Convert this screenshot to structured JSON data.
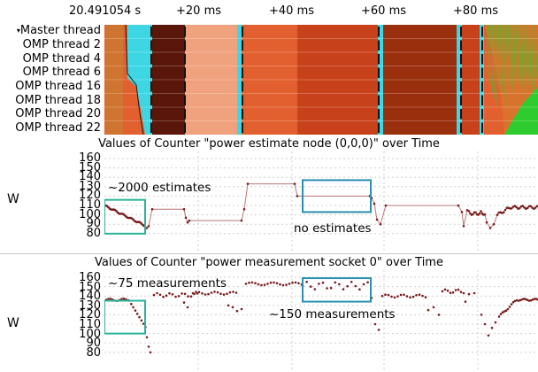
{
  "time_axis": {
    "start_label": "20.491054 s",
    "ticks": [
      "+20 ms",
      "+40 ms",
      "+60 ms",
      "+80 ms"
    ]
  },
  "threads": {
    "master": "Master thread",
    "items": [
      "OMP thread 2",
      "OMP thread 4",
      "OMP thread 6",
      "OMP thread 16",
      "OMP thread 18",
      "OMP thread 20",
      "OMP thread 22"
    ]
  },
  "colors": {
    "cyan": "#3fd6e4",
    "dark_brown": "#5a1608",
    "salmon": "#f0a27e",
    "orange": "#e2602f",
    "deep_orange": "#c7421a",
    "brown": "#9a2f0e",
    "green": "#2ecc2e",
    "teal_box": "#2ab39a",
    "blue_box": "#2a8fb0",
    "marker": "#7a1a1a",
    "line": "#b77777"
  },
  "panel1": {
    "title": "Values of Counter \"power estimate node (0,0,0)\" over Time",
    "ylabel": "W",
    "yticks": [
      "160",
      "150",
      "140",
      "130",
      "120",
      "110",
      "100",
      "90",
      "80"
    ],
    "annotation_left": "~2000 estimates",
    "annotation_right": "no estimates"
  },
  "panel2": {
    "title": "Values of Counter \"power measurement socket 0\" over Time",
    "ylabel": "W",
    "yticks": [
      "160",
      "150",
      "140",
      "130",
      "120",
      "110",
      "100",
      "90",
      "80"
    ],
    "annotation_left": "~75 measurements",
    "annotation_right": "~150 measurements"
  }
}
